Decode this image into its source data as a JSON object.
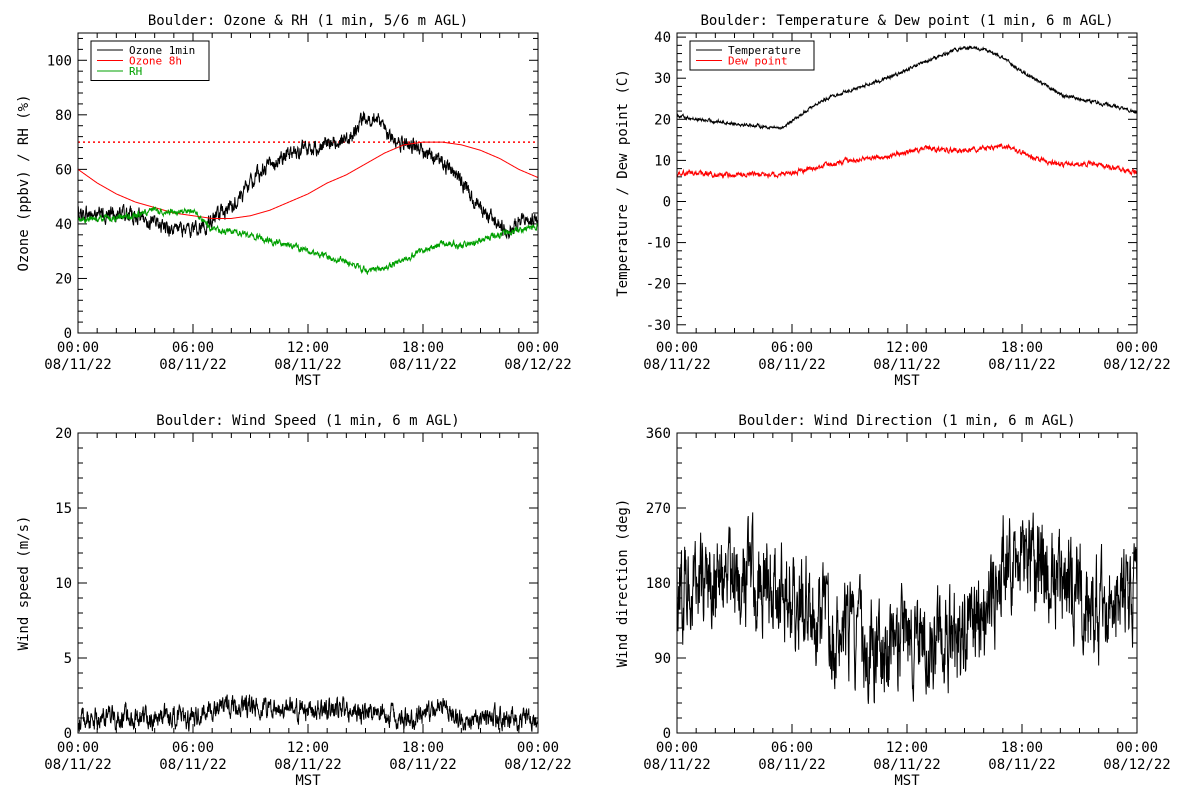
{
  "figure": {
    "background": "#ffffff",
    "x_time_labels": [
      {
        "time": "00:00",
        "date": "08/11/22"
      },
      {
        "time": "06:00",
        "date": "08/11/22"
      },
      {
        "time": "12:00",
        "date": "08/11/22"
      },
      {
        "time": "18:00",
        "date": "08/11/22"
      },
      {
        "time": "00:00",
        "date": "08/12/22"
      }
    ],
    "xlabel": "MST"
  },
  "chart_data": [
    {
      "type": "line",
      "title": "Boulder: Ozone & RH (1 min, 5/6 m AGL)",
      "xlabel": "MST",
      "ylabel": "Ozone (ppbv) / RH (%)",
      "xlim": [
        0,
        24
      ],
      "ylim": [
        0,
        110
      ],
      "yticks": [
        0,
        20,
        40,
        60,
        80,
        100
      ],
      "grid": false,
      "legend_position": "top-left",
      "reference_line": {
        "y": 70,
        "color": "#ff0000",
        "style": "dotted"
      },
      "series": [
        {
          "name": "Ozone 1min",
          "color": "#000000",
          "noise": 2.2,
          "x": [
            0,
            1,
            2,
            3,
            4,
            5,
            6,
            7,
            8,
            9,
            10,
            11,
            12,
            13,
            14,
            14.5,
            15,
            15.5,
            16,
            16.5,
            17,
            18,
            19,
            20,
            21,
            22,
            22.5,
            23,
            24
          ],
          "y": [
            44,
            43,
            44,
            43,
            40,
            38,
            38,
            41,
            46,
            55,
            62,
            66,
            67,
            70,
            71,
            74,
            79,
            80,
            74,
            70,
            69,
            67,
            63,
            55,
            46,
            39,
            37,
            41,
            42
          ]
        },
        {
          "name": "Ozone 8h",
          "color": "#ff0000",
          "noise": 0,
          "x": [
            0,
            1,
            2,
            3,
            4,
            5,
            6,
            7,
            8,
            9,
            10,
            11,
            12,
            13,
            14,
            15,
            16,
            17,
            18,
            19,
            20,
            21,
            22,
            23,
            24
          ],
          "y": [
            60,
            55,
            51,
            48,
            46,
            44,
            43,
            42,
            42,
            43,
            45,
            48,
            51,
            55,
            58,
            62,
            66,
            69,
            70,
            70,
            69,
            67,
            64,
            60,
            57
          ]
        },
        {
          "name": "RH",
          "color": "#00a000",
          "noise": 0.9,
          "x": [
            0,
            1,
            2,
            3,
            4,
            5,
            6,
            7,
            8,
            9,
            10,
            11,
            12,
            13,
            14,
            15,
            16,
            17,
            18,
            19,
            20,
            21,
            22,
            23,
            24
          ],
          "y": [
            41,
            42,
            42,
            43,
            45,
            44,
            45,
            38,
            37,
            36,
            34,
            32,
            30,
            28,
            26,
            23,
            24,
            27,
            30,
            33,
            32,
            34,
            36,
            38,
            39
          ]
        }
      ]
    },
    {
      "type": "line",
      "title": "Boulder: Temperature & Dew point (1 min, 6 m AGL)",
      "xlabel": "MST",
      "ylabel": "Temperature / Dew point (C)",
      "xlim": [
        0,
        24
      ],
      "ylim": [
        -32,
        41
      ],
      "yticks": [
        -30,
        -20,
        -10,
        0,
        10,
        20,
        30,
        40
      ],
      "grid": false,
      "legend_position": "top-left",
      "series": [
        {
          "name": "Temperature",
          "color": "#000000",
          "noise": 0.3,
          "x": [
            0,
            1,
            2,
            3,
            4,
            5,
            5.5,
            6,
            7,
            8,
            9,
            10,
            11,
            12,
            13,
            14,
            15,
            16,
            17,
            18,
            19,
            20,
            21,
            22,
            23,
            24
          ],
          "y": [
            21,
            20,
            19.5,
            19,
            18.5,
            18,
            18,
            19.5,
            23,
            25.5,
            27,
            28.5,
            30,
            32,
            34,
            36,
            37.5,
            37,
            35,
            31.5,
            29,
            26,
            25,
            24,
            23,
            21.5
          ]
        },
        {
          "name": "Dew point",
          "color": "#ff0000",
          "noise": 0.45,
          "x": [
            0,
            1,
            2,
            3,
            4,
            5,
            6,
            7,
            8,
            9,
            10,
            11,
            12,
            13,
            14,
            15,
            16,
            17,
            18,
            19,
            20,
            21,
            22,
            23,
            24
          ],
          "y": [
            7,
            7,
            6.5,
            6.5,
            6.5,
            6.5,
            7,
            8,
            9,
            10,
            10.5,
            11,
            12,
            13,
            12.5,
            12.5,
            13,
            13.5,
            12,
            10,
            9,
            9,
            9,
            8,
            7
          ]
        }
      ]
    },
    {
      "type": "line",
      "title": "Boulder: Wind Speed (1 min, 6 m AGL)",
      "xlabel": "MST",
      "ylabel": "Wind speed (m/s)",
      "xlim": [
        0,
        24
      ],
      "ylim": [
        0,
        20
      ],
      "yticks": [
        0,
        5,
        10,
        15,
        20
      ],
      "grid": false,
      "series": [
        {
          "color": "#000000",
          "noise": 0.55,
          "x": [
            0,
            2,
            4,
            6,
            7,
            8,
            10,
            12,
            14,
            16,
            18,
            19,
            20,
            22,
            24
          ],
          "y": [
            0.8,
            1.0,
            1.0,
            1.0,
            1.5,
            1.7,
            1.8,
            1.5,
            1.5,
            1.2,
            1.0,
            2.0,
            0.9,
            1.0,
            0.8
          ]
        }
      ]
    },
    {
      "type": "line",
      "title": "Boulder: Wind Direction (1 min, 6 m AGL)",
      "xlabel": "MST",
      "ylabel": "Wind direction (deg)",
      "xlim": [
        0,
        24
      ],
      "ylim": [
        0,
        360
      ],
      "yticks": [
        0,
        90,
        180,
        270,
        360
      ],
      "grid": false,
      "series": [
        {
          "color": "#000000",
          "noise": 42,
          "x": [
            0,
            1,
            2,
            3,
            4,
            5,
            6,
            7,
            8,
            9,
            10,
            11,
            12,
            13,
            14,
            15,
            16,
            17,
            18,
            19,
            20,
            21,
            22,
            23,
            24
          ],
          "y": [
            175,
            180,
            185,
            190,
            185,
            170,
            160,
            150,
            120,
            110,
            105,
            100,
            110,
            120,
            105,
            110,
            130,
            200,
            215,
            200,
            180,
            170,
            150,
            160,
            175
          ]
        }
      ]
    }
  ]
}
